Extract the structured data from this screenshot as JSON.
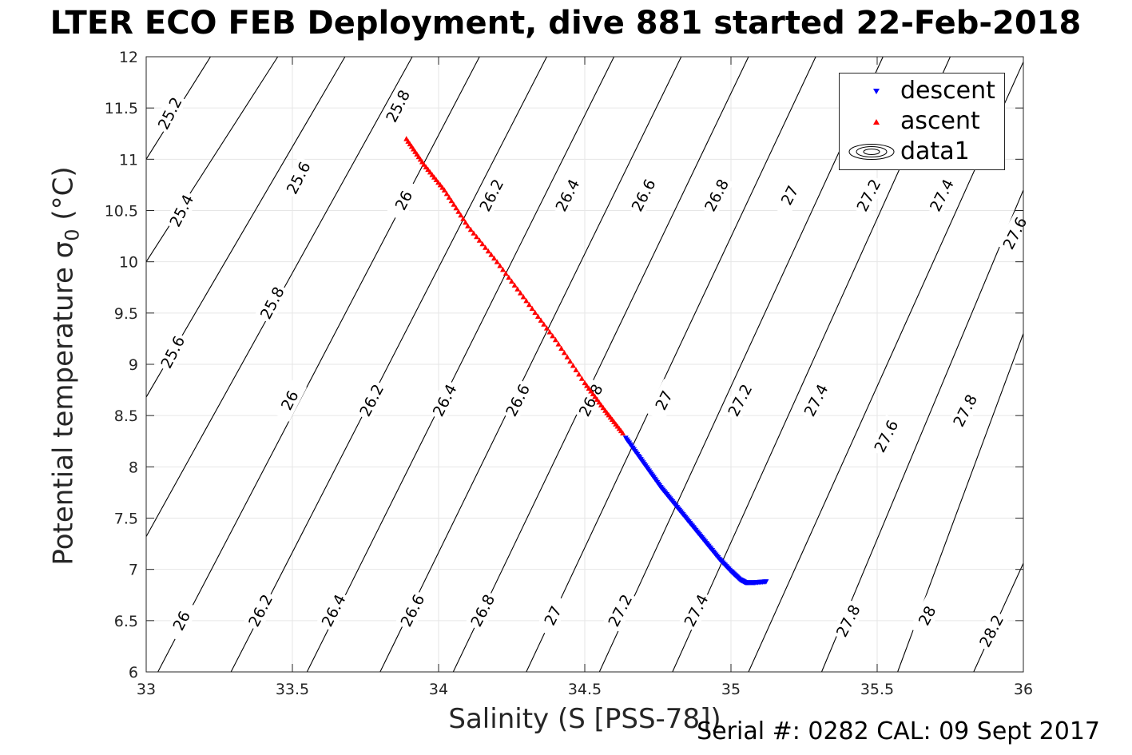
{
  "title": "LTER ECO FEB Deployment, dive 881 started 22-Feb-2018",
  "footer": "Serial #: 0282  CAL: 09 Sept 2017",
  "chart_data": {
    "type": "scatter",
    "xlabel": "Salinity (S [PSS-78])",
    "ylabel": "Potential temperature σ",
    "ylabel_sub": "0",
    "ylabel_unit": " (°C)",
    "xlim": [
      33,
      36
    ],
    "ylim": [
      6,
      12
    ],
    "xticks": [
      "33",
      "33.5",
      "34",
      "34.5",
      "35",
      "35.5",
      "36"
    ],
    "yticks": [
      "6",
      "6.5",
      "7",
      "7.5",
      "8",
      "8.5",
      "9",
      "9.5",
      "10",
      "10.5",
      "11",
      "11.5",
      "12"
    ],
    "grid": true,
    "legend_position": "top-right",
    "legend": [
      "descent",
      "ascent",
      "data1"
    ],
    "series": [
      {
        "name": "descent",
        "marker": "triangle-down",
        "color": "#0000ff",
        "points": [
          [
            34.64,
            8.28
          ],
          [
            34.68,
            8.12
          ],
          [
            34.72,
            7.96
          ],
          [
            34.76,
            7.8
          ],
          [
            34.8,
            7.66
          ],
          [
            34.84,
            7.52
          ],
          [
            34.88,
            7.38
          ],
          [
            34.92,
            7.24
          ],
          [
            34.96,
            7.1
          ],
          [
            35.0,
            6.98
          ],
          [
            35.03,
            6.9
          ],
          [
            35.05,
            6.87
          ],
          [
            35.08,
            6.87
          ],
          [
            35.12,
            6.88
          ]
        ]
      },
      {
        "name": "ascent",
        "marker": "triangle-up",
        "color": "#ff0000",
        "points": [
          [
            33.89,
            11.2
          ],
          [
            33.95,
            10.95
          ],
          [
            34.02,
            10.7
          ],
          [
            34.1,
            10.35
          ],
          [
            34.2,
            10.0
          ],
          [
            34.3,
            9.62
          ],
          [
            34.4,
            9.24
          ],
          [
            34.5,
            8.82
          ],
          [
            34.57,
            8.55
          ],
          [
            34.63,
            8.33
          ]
        ]
      }
    ],
    "contours": [
      {
        "label": "25.2",
        "p1": [
          33.0,
          11.0
        ],
        "p2": [
          33.22,
          12.0
        ]
      },
      {
        "label": "25.4",
        "p1": [
          33.0,
          10.0
        ],
        "p2": [
          33.45,
          12.0
        ]
      },
      {
        "label": "25.6",
        "p1": [
          33.0,
          8.68
        ],
        "p2": [
          33.68,
          12.0
        ]
      },
      {
        "label": "25.8",
        "p1": [
          33.0,
          7.32
        ],
        "p2": [
          33.91,
          12.0
        ]
      },
      {
        "label": "26",
        "p1": [
          33.04,
          6.0
        ],
        "p2": [
          34.14,
          12.0
        ]
      },
      {
        "label": "26.2",
        "p1": [
          33.29,
          6.0
        ],
        "p2": [
          34.37,
          12.0
        ]
      },
      {
        "label": "26.4",
        "p1": [
          33.55,
          6.0
        ],
        "p2": [
          34.6,
          12.0
        ]
      },
      {
        "label": "26.6",
        "p1": [
          33.8,
          6.0
        ],
        "p2": [
          34.83,
          12.0
        ]
      },
      {
        "label": "26.8",
        "p1": [
          34.05,
          6.0
        ],
        "p2": [
          35.06,
          12.0
        ]
      },
      {
        "label": "27",
        "p1": [
          34.3,
          6.0
        ],
        "p2": [
          35.29,
          12.0
        ]
      },
      {
        "label": "27.2",
        "p1": [
          34.55,
          6.0
        ],
        "p2": [
          35.52,
          12.0
        ]
      },
      {
        "label": "27.4",
        "p1": [
          34.8,
          6.0
        ],
        "p2": [
          35.75,
          12.0
        ]
      },
      {
        "label": "27.6",
        "p1": [
          35.06,
          6.0
        ],
        "p2": [
          36.0,
          11.95
        ]
      },
      {
        "label": "27.8",
        "p1": [
          35.31,
          6.0
        ],
        "p2": [
          36.0,
          10.7
        ]
      },
      {
        "label": "28",
        "p1": [
          35.57,
          6.0
        ],
        "p2": [
          36.0,
          9.3
        ]
      },
      {
        "label": "28.2",
        "p1": [
          35.83,
          6.0
        ],
        "p2": [
          36.0,
          7.06
        ]
      }
    ],
    "contour_labels": [
      {
        "text": "25.2",
        "at": [
          33.08,
          11.45
        ]
      },
      {
        "text": "25.4",
        "at": [
          33.12,
          10.5
        ]
      },
      {
        "text": "25.6",
        "at": [
          33.09,
          9.12
        ]
      },
      {
        "text": "25.8",
        "at": [
          33.43,
          9.6
        ]
      },
      {
        "text": "25.6",
        "at": [
          33.52,
          10.82
        ]
      },
      {
        "text": "25.8",
        "at": [
          33.86,
          11.52
        ]
      },
      {
        "text": "26",
        "at": [
          33.88,
          10.6
        ]
      },
      {
        "text": "26",
        "at": [
          33.49,
          8.65
        ]
      },
      {
        "text": "26",
        "at": [
          33.12,
          6.5
        ]
      },
      {
        "text": "26.2",
        "at": [
          34.18,
          10.65
        ]
      },
      {
        "text": "26.2",
        "at": [
          33.77,
          8.65
        ]
      },
      {
        "text": "26.2",
        "at": [
          33.39,
          6.6
        ]
      },
      {
        "text": "26.4",
        "at": [
          34.44,
          10.65
        ]
      },
      {
        "text": "26.4",
        "at": [
          34.02,
          8.65
        ]
      },
      {
        "text": "26.4",
        "at": [
          33.64,
          6.6
        ]
      },
      {
        "text": "26.6",
        "at": [
          34.7,
          10.65
        ]
      },
      {
        "text": "26.6",
        "at": [
          34.27,
          8.65
        ]
      },
      {
        "text": "26.6",
        "at": [
          33.91,
          6.6
        ]
      },
      {
        "text": "26.8",
        "at": [
          34.95,
          10.65
        ]
      },
      {
        "text": "26.8",
        "at": [
          34.52,
          8.65
        ]
      },
      {
        "text": "26.8",
        "at": [
          34.15,
          6.6
        ]
      },
      {
        "text": "27",
        "at": [
          35.2,
          10.65
        ]
      },
      {
        "text": "27",
        "at": [
          34.77,
          8.65
        ]
      },
      {
        "text": "27",
        "at": [
          34.39,
          6.55
        ]
      },
      {
        "text": "27.2",
        "at": [
          35.47,
          10.65
        ]
      },
      {
        "text": "27.2",
        "at": [
          35.03,
          8.65
        ]
      },
      {
        "text": "27.2",
        "at": [
          34.62,
          6.6
        ]
      },
      {
        "text": "27.4",
        "at": [
          35.72,
          10.65
        ]
      },
      {
        "text": "27.4",
        "at": [
          35.29,
          8.65
        ]
      },
      {
        "text": "27.4",
        "at": [
          34.88,
          6.6
        ]
      },
      {
        "text": "27.6",
        "at": [
          35.97,
          10.28
        ]
      },
      {
        "text": "27.6",
        "at": [
          35.53,
          8.3
        ]
      },
      {
        "text": "27.8",
        "at": [
          35.8,
          8.55
        ]
      },
      {
        "text": "27.8",
        "at": [
          35.4,
          6.5
        ]
      },
      {
        "text": "28",
        "at": [
          35.67,
          6.55
        ]
      },
      {
        "text": "28.2",
        "at": [
          35.89,
          6.4
        ]
      }
    ]
  }
}
